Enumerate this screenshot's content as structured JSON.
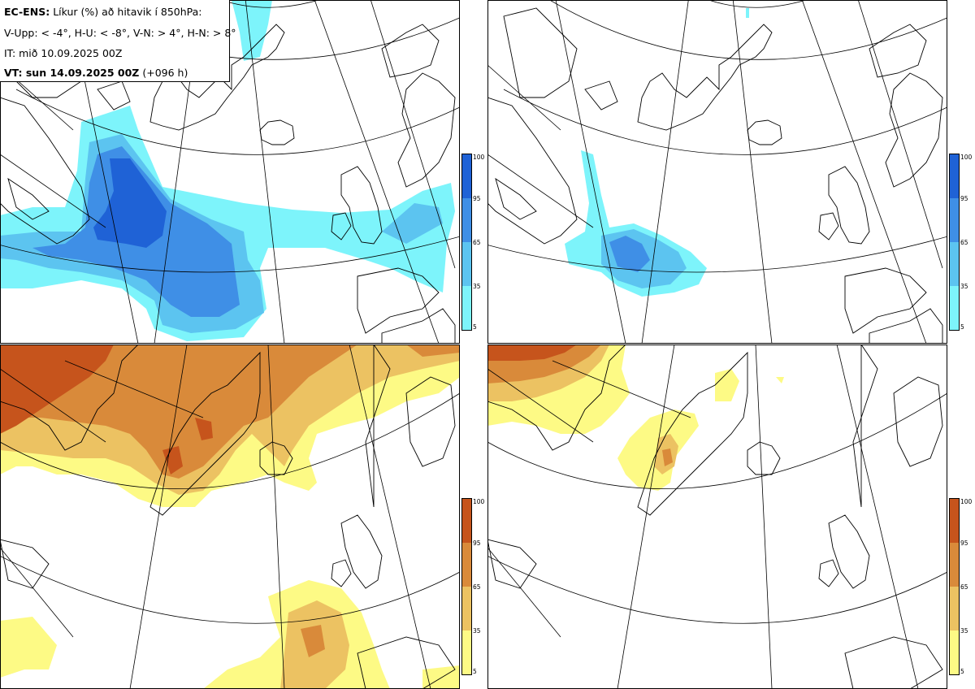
{
  "header": {
    "model": "EC-ENS:",
    "title": "Líkur (%) að hitavik í 850hPa:",
    "thresholds": "V-Upp: < -4°, H-U: < -8°, V-N: > 4°, H-N: > 8°",
    "init_time": "IT: mið 10.09.2025 00Z",
    "valid_prefix": "VT: sun 14.09.2025 00Z",
    "lead": "(+096 h)"
  },
  "colorbars": {
    "cold": {
      "ticks": [
        "100",
        "95",
        "65",
        "35",
        "5"
      ],
      "colors": [
        "#1f62d6",
        "#3f8fe6",
        "#5cc4f0",
        "#7df4fb"
      ]
    },
    "warm": {
      "ticks": [
        "100",
        "95",
        "65",
        "35",
        "5"
      ],
      "colors": [
        "#c6541c",
        "#d98a3a",
        "#ecc262",
        "#fdfa85"
      ]
    }
  },
  "panels": [
    {
      "name": "V-Upp",
      "variable": "probability anomaly < -4°",
      "palette": "cold"
    },
    {
      "name": "H-U",
      "variable": "probability anomaly < -8°",
      "palette": "cold"
    },
    {
      "name": "V-N",
      "variable": "probability anomaly > 4°",
      "palette": "warm"
    },
    {
      "name": "H-N",
      "variable": "probability anomaly > 8°",
      "palette": "warm"
    }
  ]
}
